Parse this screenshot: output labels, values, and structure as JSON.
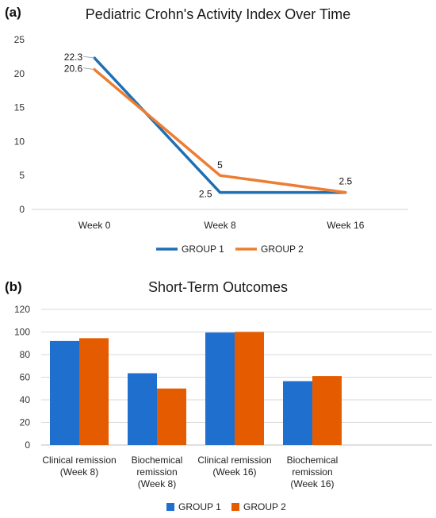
{
  "chart_data": [
    {
      "panel": "(a)",
      "type": "line",
      "title": "Pediatric Crohn's Activity Index Over Time",
      "categories": [
        "Week 0",
        "Week 8",
        "Week 16"
      ],
      "series": [
        {
          "name": "GROUP 1",
          "values": [
            22.3,
            2.5,
            2.5
          ],
          "labels": [
            "22.3",
            "2.5",
            ""
          ],
          "color": "#1f6fb5"
        },
        {
          "name": "GROUP 2",
          "values": [
            20.6,
            5,
            2.5
          ],
          "labels": [
            "20.6",
            "5",
            "2.5"
          ],
          "color": "#ed7d31"
        }
      ],
      "ylim": [
        0,
        25
      ],
      "yticks": [
        0,
        5,
        10,
        15,
        20,
        25
      ],
      "grid": false,
      "legend": "bottom"
    },
    {
      "panel": "(b)",
      "type": "bar",
      "title": "Short-Term Outcomes",
      "categories": [
        [
          "Clinical remission",
          "(Week 8)"
        ],
        [
          "Biochemical",
          "remission",
          "(Week 8)"
        ],
        [
          "Clinical remission",
          "(Week 16)"
        ],
        [
          "Biochemical",
          "remission",
          "(Week 16)"
        ]
      ],
      "series": [
        {
          "name": "GROUP 1",
          "values": [
            92,
            63.5,
            99.5,
            56.5
          ],
          "color": "#1f6fcf"
        },
        {
          "name": "GROUP 2",
          "values": [
            94.5,
            50,
            100,
            61
          ],
          "color": "#e55c00"
        }
      ],
      "ylim": [
        0,
        120
      ],
      "yticks": [
        0,
        20,
        40,
        60,
        80,
        100,
        120
      ],
      "grid": true,
      "legend": "bottom"
    }
  ]
}
